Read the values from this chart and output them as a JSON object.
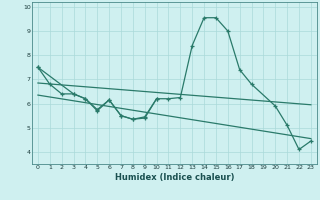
{
  "xlabel": "Humidex (Indice chaleur)",
  "x_values": [
    0,
    1,
    2,
    3,
    4,
    5,
    6,
    7,
    8,
    9,
    10,
    11,
    12,
    13,
    14,
    15,
    16,
    17,
    18,
    19,
    20,
    21,
    22,
    23
  ],
  "line1_x": [
    0,
    1,
    2,
    3,
    4,
    5,
    6,
    7,
    8,
    9,
    10,
    11,
    12,
    13,
    14,
    15,
    16,
    17,
    18,
    20,
    21,
    22,
    23
  ],
  "line1_y": [
    7.5,
    6.8,
    6.4,
    6.4,
    6.2,
    5.75,
    6.15,
    5.5,
    5.35,
    5.4,
    6.2,
    6.2,
    6.25,
    8.4,
    9.55,
    9.55,
    9.0,
    7.4,
    6.8,
    5.9,
    5.1,
    4.1,
    4.45
  ],
  "line2_x": [
    0,
    3,
    4,
    5,
    6,
    7,
    8,
    9,
    10
  ],
  "line2_y": [
    7.5,
    6.4,
    6.2,
    5.7,
    6.15,
    5.5,
    5.35,
    5.45,
    6.2
  ],
  "line_trend1_x": [
    0,
    23
  ],
  "line_trend1_y": [
    6.85,
    5.95
  ],
  "line_trend2_x": [
    0,
    23
  ],
  "line_trend2_y": [
    6.35,
    4.55
  ],
  "line_color": "#2a7a6a",
  "bg_color": "#cff0f0",
  "grid_color": "#aadada",
  "ylim": [
    3.5,
    10.2
  ],
  "xlim": [
    -0.5,
    23.5
  ],
  "yticks": [
    4,
    5,
    6,
    7,
    8,
    9,
    10
  ],
  "xticks": [
    0,
    1,
    2,
    3,
    4,
    5,
    6,
    7,
    8,
    9,
    10,
    11,
    12,
    13,
    14,
    15,
    16,
    17,
    18,
    19,
    20,
    21,
    22,
    23
  ]
}
